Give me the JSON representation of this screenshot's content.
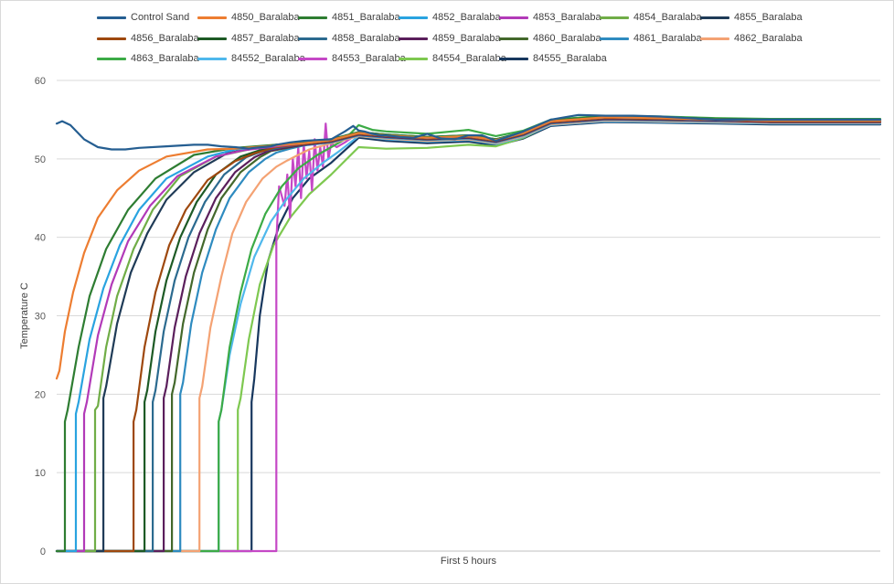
{
  "chart_data": {
    "type": "line",
    "title": "",
    "xlabel": "First 5 hours",
    "ylabel": "Temperature C",
    "x_range": [
      0,
      300
    ],
    "x_unit": "minutes",
    "ylim": [
      0,
      60
    ],
    "yticks": [
      0,
      10,
      20,
      30,
      40,
      50,
      60
    ],
    "grid": "horizontal",
    "legend_position": "top",
    "series": [
      {
        "name": "Control Sand",
        "color": "#255e91",
        "x": [
          0,
          2,
          5,
          10,
          15,
          20,
          25,
          30,
          40,
          50,
          55,
          60,
          65,
          70,
          72,
          78,
          80,
          85,
          90,
          95,
          100,
          105,
          108,
          110,
          112,
          115,
          118,
          120,
          125,
          130,
          135,
          140,
          145,
          150,
          155,
          160,
          170,
          180,
          190,
          200,
          210,
          220,
          230,
          240,
          250,
          260,
          270,
          280,
          290,
          300
        ],
        "y": [
          54.5,
          54.8,
          54.3,
          52.5,
          51.5,
          51.2,
          51.2,
          51.4,
          51.6,
          51.8,
          51.8,
          51.6,
          51.5,
          51.3,
          51.4,
          51.6,
          51.8,
          52.1,
          52.3,
          52.4,
          52.5,
          53.5,
          54.2,
          53.6,
          53.5,
          53.2,
          53.0,
          53.0,
          52.8,
          52.7,
          53.2,
          52.6,
          52.5,
          53.0,
          53.0,
          52.3,
          53.5,
          55.0,
          55.6,
          55.5,
          55.5,
          55.4,
          55.2,
          55.0,
          55.0,
          55.0,
          55.0,
          55.0,
          55.0,
          55.0
        ]
      },
      {
        "name": "4850_Baralaba",
        "color": "#ed7d31",
        "x": [
          0,
          1,
          3,
          6,
          10,
          15,
          22,
          30,
          40,
          55,
          65,
          80,
          90,
          100,
          110,
          120,
          135,
          150,
          160,
          170,
          180,
          200,
          220,
          240,
          260,
          280,
          300
        ],
        "y": [
          22,
          23,
          28,
          33,
          38,
          42.5,
          46,
          48.5,
          50.3,
          51.2,
          51.3,
          51.7,
          52.0,
          52.4,
          53.3,
          53.0,
          52.7,
          52.9,
          52.4,
          53.3,
          54.8,
          55.3,
          55.2,
          55.0,
          54.9,
          54.9,
          54.9
        ]
      },
      {
        "name": "4851_Baralaba",
        "color": "#2e7d32",
        "x": [
          0,
          3,
          3,
          4,
          8,
          12,
          18,
          26,
          36,
          50,
          65,
          80,
          90,
          100,
          110,
          120,
          135,
          150,
          160,
          170,
          180,
          200,
          220,
          240,
          260,
          280,
          300
        ],
        "y": [
          0,
          0,
          16.5,
          18,
          26,
          32.5,
          38.5,
          43.5,
          47.5,
          50.5,
          51.4,
          51.8,
          52.1,
          52.5,
          53.4,
          53.1,
          52.8,
          53.0,
          52.5,
          53.4,
          54.9,
          55.4,
          55.3,
          55.1,
          55.0,
          55.0,
          55.0
        ]
      },
      {
        "name": "4852_Baralaba",
        "color": "#29a3e0",
        "x": [
          0,
          7,
          7,
          8,
          12,
          17,
          23,
          30,
          40,
          55,
          65,
          80,
          90,
          100,
          110,
          120,
          135,
          150,
          160,
          170,
          180,
          200,
          220,
          240,
          260,
          280,
          300
        ],
        "y": [
          0,
          0,
          17.5,
          19,
          27,
          33.5,
          39,
          43.5,
          47.5,
          50.3,
          51.2,
          51.7,
          52.0,
          52.4,
          53.3,
          53.0,
          52.7,
          52.9,
          52.4,
          53.3,
          54.8,
          55.3,
          55.2,
          55.0,
          54.9,
          54.9,
          54.9
        ]
      },
      {
        "name": "4853_Baralaba",
        "color": "#b23ab8",
        "x": [
          0,
          10,
          10,
          11,
          15,
          20,
          26,
          34,
          44,
          58,
          68,
          80,
          90,
          100,
          110,
          120,
          135,
          150,
          160,
          170,
          180,
          200,
          220,
          240,
          260,
          280,
          300
        ],
        "y": [
          0,
          0,
          17.5,
          19,
          27.5,
          34,
          39.5,
          44,
          47.8,
          50.3,
          51.1,
          51.6,
          52.0,
          52.4,
          53.3,
          53.0,
          52.7,
          52.9,
          52.4,
          53.3,
          54.8,
          55.3,
          55.2,
          55.0,
          54.9,
          54.9,
          54.9
        ]
      },
      {
        "name": "4854_Baralaba",
        "color": "#70ad47",
        "x": [
          0,
          14,
          14,
          15,
          18,
          22,
          28,
          35,
          45,
          58,
          70,
          80,
          90,
          100,
          110,
          120,
          135,
          150,
          160,
          170,
          180,
          200,
          220,
          240,
          260,
          280,
          300
        ],
        "y": [
          0,
          0,
          18,
          18.5,
          26,
          32.5,
          38.5,
          43.5,
          47.8,
          50.3,
          51.2,
          51.7,
          52.0,
          52.4,
          53.3,
          53.0,
          52.7,
          52.9,
          52.4,
          53.3,
          54.8,
          55.3,
          55.2,
          55.0,
          54.9,
          54.9,
          54.9
        ]
      },
      {
        "name": "4855_Baralaba",
        "color": "#1f3b57",
        "x": [
          0,
          17,
          17,
          18,
          22,
          27,
          33,
          40,
          50,
          62,
          72,
          80,
          90,
          100,
          110,
          120,
          135,
          150,
          160,
          170,
          180,
          200,
          220,
          240,
          260,
          280,
          300
        ],
        "y": [
          0,
          0,
          19.5,
          21,
          29,
          35.5,
          40.5,
          44.8,
          48.3,
          50.7,
          51.4,
          51.8,
          52.1,
          52.5,
          53.4,
          53.1,
          52.8,
          53.0,
          52.5,
          53.4,
          54.9,
          55.4,
          55.3,
          55.1,
          55.0,
          55.0,
          55.0
        ]
      },
      {
        "name": "4856_Baralaba",
        "color": "#9e480e",
        "x": [
          0,
          28,
          28,
          29,
          32,
          36,
          41,
          47,
          55,
          65,
          72,
          80,
          90,
          100,
          110,
          120,
          135,
          150,
          160,
          170,
          180,
          200,
          220,
          240,
          260,
          280,
          300
        ],
        "y": [
          0,
          0,
          16.5,
          18,
          26,
          33,
          39,
          43.5,
          47.3,
          49.7,
          50.7,
          51.5,
          51.9,
          52.3,
          53.2,
          52.9,
          52.6,
          52.8,
          52.3,
          53.2,
          54.7,
          55.2,
          55.1,
          55.0,
          54.8,
          54.8,
          54.8
        ]
      },
      {
        "name": "4857_Baralaba",
        "color": "#1d5a25",
        "x": [
          0,
          32,
          32,
          33,
          36,
          40,
          45,
          51,
          58,
          67,
          74,
          80,
          90,
          100,
          110,
          120,
          135,
          150,
          160,
          170,
          180,
          200,
          220,
          240,
          260,
          280,
          300
        ],
        "y": [
          0,
          0,
          19,
          20.5,
          28,
          34.5,
          40,
          44.5,
          48,
          50.3,
          51.1,
          51.6,
          52.0,
          52.4,
          53.3,
          53.0,
          52.7,
          52.9,
          52.4,
          53.3,
          54.8,
          55.3,
          55.2,
          55.0,
          54.9,
          54.9,
          54.9
        ]
      },
      {
        "name": "4858_Baralaba",
        "color": "#2b6a8f",
        "x": [
          0,
          35,
          35,
          36,
          39,
          43,
          48,
          54,
          61,
          69,
          75,
          82,
          90,
          100,
          110,
          120,
          135,
          150,
          160,
          170,
          180,
          200,
          220,
          240,
          260,
          280,
          300
        ],
        "y": [
          0,
          0,
          19,
          20.5,
          28,
          34.5,
          40,
          44.5,
          48,
          50.2,
          51.0,
          51.5,
          51.9,
          52.3,
          53.2,
          52.9,
          52.6,
          52.8,
          52.3,
          53.2,
          54.7,
          55.2,
          55.1,
          55.0,
          54.8,
          54.8,
          54.8
        ]
      },
      {
        "name": "4859_Baralaba",
        "color": "#5b1f5c",
        "x": [
          0,
          39,
          39,
          40,
          43,
          47,
          52,
          58,
          65,
          72,
          77,
          83,
          90,
          100,
          110,
          120,
          135,
          150,
          160,
          170,
          180,
          200,
          220,
          240,
          260,
          280,
          300
        ],
        "y": [
          0,
          0,
          19.5,
          21,
          28.5,
          35,
          40.5,
          45,
          48.3,
          50.2,
          51.0,
          51.4,
          51.8,
          52.2,
          53.1,
          52.8,
          52.5,
          52.7,
          52.2,
          53.1,
          54.6,
          55.1,
          55.0,
          54.9,
          54.7,
          54.7,
          54.7
        ]
      },
      {
        "name": "4860_Baralaba",
        "color": "#43682b",
        "x": [
          0,
          42,
          42,
          43,
          46,
          50,
          55,
          60,
          67,
          74,
          78,
          84,
          90,
          100,
          110,
          120,
          135,
          150,
          160,
          170,
          180,
          200,
          220,
          240,
          260,
          280,
          300
        ],
        "y": [
          0,
          0,
          20,
          21.5,
          29,
          35.5,
          41,
          45,
          48.3,
          50.2,
          51.0,
          51.4,
          51.8,
          52.2,
          53.1,
          52.8,
          52.5,
          52.7,
          52.2,
          53.1,
          54.6,
          55.1,
          55.0,
          54.9,
          54.7,
          54.7,
          54.7
        ]
      },
      {
        "name": "4861_Baralaba",
        "color": "#2e8bc0",
        "x": [
          0,
          45,
          45,
          46,
          49,
          53,
          58,
          63,
          70,
          76,
          80,
          85,
          90,
          100,
          110,
          120,
          135,
          150,
          160,
          170,
          180,
          200,
          220,
          240,
          260,
          280,
          300
        ],
        "y": [
          0,
          0,
          20,
          21.5,
          29,
          35.5,
          41,
          45,
          48.3,
          50.0,
          50.8,
          51.3,
          51.7,
          52.1,
          53.0,
          52.7,
          52.4,
          52.6,
          52.1,
          53.0,
          54.5,
          55.0,
          54.9,
          54.8,
          54.7,
          54.7,
          54.7
        ]
      },
      {
        "name": "4862_Baralaba",
        "color": "#f4a273",
        "x": [
          0,
          52,
          52,
          53,
          56,
          60,
          64,
          69,
          75,
          80,
          84,
          88,
          92,
          100,
          110,
          120,
          135,
          150,
          160,
          170,
          180,
          200,
          220,
          240,
          260,
          280,
          300
        ],
        "y": [
          0,
          0,
          19.5,
          21,
          28.5,
          35,
          40.5,
          44.5,
          47.5,
          49.0,
          49.8,
          50.5,
          51.2,
          52.0,
          52.9,
          52.6,
          52.3,
          52.5,
          52.0,
          52.9,
          54.4,
          54.9,
          54.8,
          54.7,
          54.6,
          54.6,
          54.6
        ]
      },
      {
        "name": "4863_Baralaba",
        "color": "#3cab46",
        "x": [
          0,
          59,
          59,
          60,
          63,
          67,
          71,
          76,
          82,
          88,
          95,
          100,
          105,
          110,
          115,
          120,
          135,
          150,
          160,
          170,
          180,
          200,
          220,
          240,
          260,
          280,
          300
        ],
        "y": [
          0,
          0,
          16.5,
          18,
          26,
          33,
          38.5,
          43,
          46.5,
          48.8,
          50.5,
          51.5,
          52.5,
          54.3,
          53.7,
          53.5,
          53.2,
          53.7,
          52.9,
          53.6,
          55.0,
          55.5,
          55.4,
          55.2,
          55.1,
          55.1,
          55.1
        ]
      },
      {
        "name": "84552_Baralaba",
        "color": "#4fb8ec",
        "x": [
          0,
          59,
          59,
          60,
          63,
          67,
          72,
          78,
          84,
          90,
          97,
          103,
          110,
          120,
          135,
          150,
          160,
          170,
          180,
          200,
          220,
          240,
          260,
          280,
          300
        ],
        "y": [
          0,
          0,
          16.5,
          18,
          25,
          31.5,
          37.5,
          42,
          45,
          47.5,
          49.5,
          51.0,
          52.9,
          52.5,
          52.2,
          52.4,
          51.9,
          52.8,
          54.3,
          54.8,
          54.7,
          54.6,
          54.5,
          54.5,
          54.5
        ]
      },
      {
        "name": "84553_Baralaba",
        "color": "#c548c6",
        "x": [
          0,
          80,
          80,
          81,
          83,
          84,
          85,
          86,
          87,
          88,
          89,
          90,
          91,
          92,
          93,
          94,
          95,
          96,
          97,
          98,
          99,
          100,
          102,
          105,
          110,
          120,
          135,
          150,
          160,
          170,
          180,
          200,
          220,
          240,
          260,
          280,
          300
        ],
        "y": [
          0,
          0,
          39.5,
          46.5,
          44,
          48,
          42.5,
          50,
          46.5,
          51.5,
          45,
          52,
          47.5,
          51,
          46,
          52.5,
          48.5,
          51.5,
          49,
          54.5,
          50,
          52,
          51.5,
          52.1,
          53.3,
          53.0,
          52.7,
          52.9,
          52.4,
          53.3,
          54.8,
          55.3,
          55.2,
          55.0,
          54.9,
          54.9,
          54.9
        ]
      },
      {
        "name": "84554_Baralaba",
        "color": "#7ec850",
        "x": [
          0,
          66,
          66,
          67,
          70,
          74,
          79,
          85,
          92,
          100,
          110,
          120,
          135,
          150,
          160,
          170,
          180,
          200,
          220,
          240,
          260,
          280,
          300
        ],
        "y": [
          0,
          0,
          18,
          19.5,
          27,
          34,
          39,
          42.5,
          45.5,
          48,
          51.5,
          51.3,
          51.4,
          51.8,
          51.6,
          52.7,
          54.4,
          55.0,
          54.9,
          54.8,
          54.7,
          54.7,
          54.7
        ]
      },
      {
        "name": "84555_Baralaba",
        "color": "#17375e",
        "x": [
          0,
          71,
          71,
          72,
          74,
          77,
          81,
          86,
          92,
          100,
          110,
          120,
          135,
          150,
          160,
          170,
          180,
          200,
          220,
          240,
          260,
          280,
          300
        ],
        "y": [
          0,
          0,
          19,
          22,
          30,
          37,
          41.5,
          45,
          47.5,
          49.5,
          52.7,
          52.3,
          52.0,
          52.2,
          51.7,
          52.6,
          54.2,
          54.7,
          54.6,
          54.5,
          54.4,
          54.4,
          54.4
        ]
      }
    ]
  }
}
